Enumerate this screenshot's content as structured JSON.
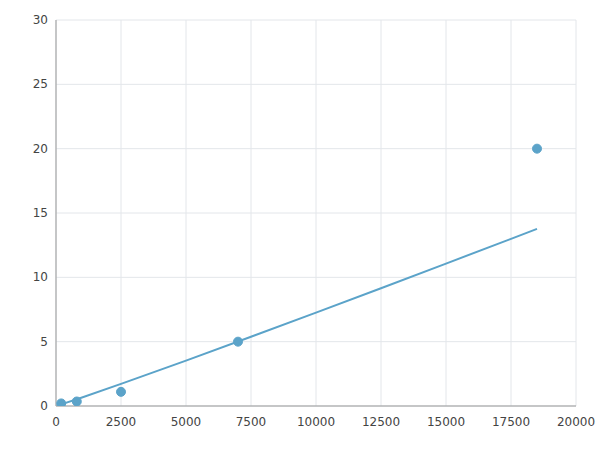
{
  "chart_data": {
    "type": "scatter",
    "series": [
      {
        "type": "line",
        "color": "#5ba3c9",
        "x": [
          200,
          1000,
          2500,
          5000,
          7500,
          10000,
          12500,
          15000,
          17500,
          18500
        ],
        "values": [
          0.124,
          0.6617,
          1.7163,
          3.5297,
          5.3817,
          7.2592,
          9.1558,
          11.068,
          12.993,
          13.766
        ]
      },
      {
        "type": "scatter",
        "color": "#5ba3c9",
        "x": [
          200,
          800,
          2500,
          7000,
          18500
        ],
        "values": [
          0.2,
          0.35,
          1.1,
          5.0,
          20.0
        ]
      }
    ],
    "xlim": [
      0,
      20000
    ],
    "ylim": [
      0,
      30
    ],
    "xticks": [
      0,
      2500,
      5000,
      7500,
      10000,
      12500,
      15000,
      17500,
      20000
    ],
    "yticks": [
      0,
      5,
      10,
      15,
      20,
      25,
      30
    ],
    "grid": true
  }
}
